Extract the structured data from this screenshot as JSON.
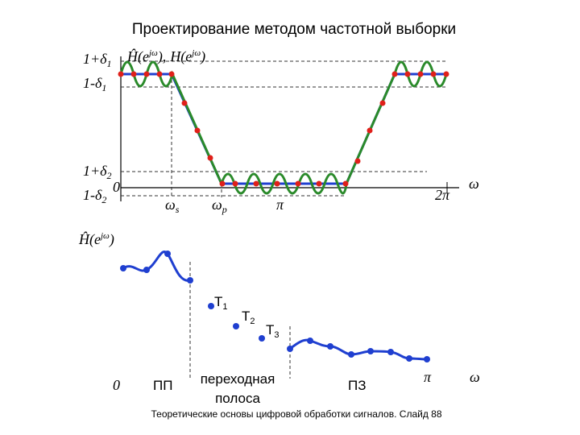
{
  "title": "Проектирование методом частотной выборки",
  "top_plot": {
    "labels": {
      "upper_pass": {
        "text": "1+δ",
        "sub": "1"
      },
      "lower_pass": {
        "text": "1-δ",
        "sub": "1"
      },
      "upper_stop": {
        "text": "1+δ",
        "sub": "2"
      },
      "lower_stop": {
        "text": "1-δ",
        "sub": "2"
      },
      "zero": "0",
      "h_hat": {
        "base": "Ĥ(e",
        "sup": "jω",
        "close": ")"
      },
      "separator": ",",
      "h": {
        "base": "H(e",
        "sup": "jω",
        "close": ")"
      },
      "omega_s": {
        "text": "ω",
        "sub": "s"
      },
      "omega_p": {
        "text": "ω",
        "sub": "p"
      },
      "pi": "π",
      "two_pi": "2π",
      "omega": "ω"
    }
  },
  "bottom_plot": {
    "labels": {
      "h_hat": {
        "base": "Ĥ(e",
        "sup": "jω",
        "close": ")"
      },
      "t1": {
        "text": "T",
        "sub": "1"
      },
      "t2": {
        "text": "T",
        "sub": "2"
      },
      "t3": {
        "text": "T",
        "sub": "3"
      },
      "zero": "0",
      "passband": "ПП",
      "transition_band": [
        "переходная",
        "полоса"
      ],
      "stopband": "ПЗ",
      "pi": "π",
      "omega": "ω"
    }
  },
  "footer": "Теоретические основы цифровой обработки сигналов. Слайд 88"
}
